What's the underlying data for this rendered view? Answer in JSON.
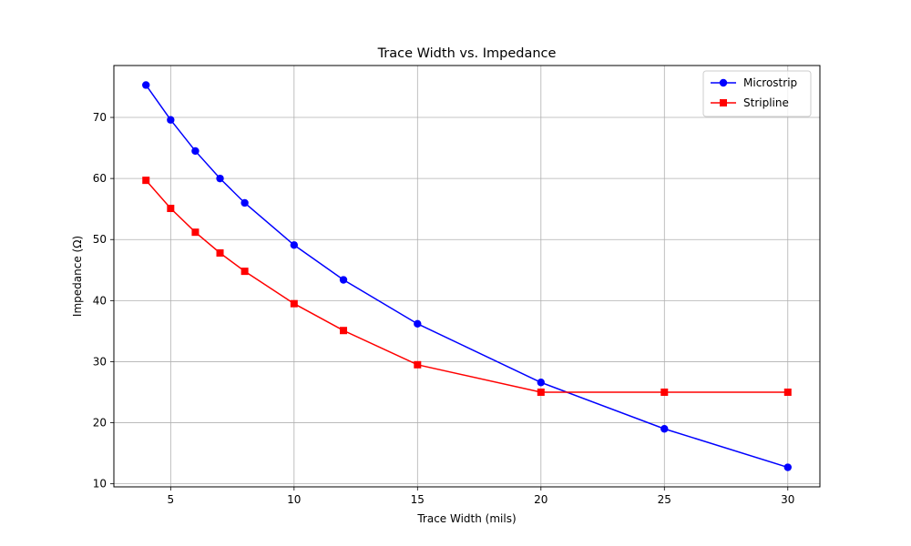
{
  "chart_data": {
    "type": "line",
    "title": "Trace Width vs. Impedance",
    "xlabel": "Trace Width (mils)",
    "ylabel": "Impedance (Ω)",
    "xlim": [
      2.7,
      31.3
    ],
    "ylim": [
      9.5,
      78.5
    ],
    "xticks": [
      5,
      10,
      15,
      20,
      25,
      30
    ],
    "yticks": [
      10,
      20,
      30,
      40,
      50,
      60,
      70
    ],
    "grid": true,
    "legend_position": "top-right",
    "x": [
      4,
      5,
      6,
      7,
      8,
      10,
      12,
      15,
      20,
      25,
      30
    ],
    "series": [
      {
        "name": "Microstrip",
        "color": "#0000ff",
        "marker": "circle",
        "values": [
          75.3,
          69.6,
          64.5,
          60.0,
          56.0,
          49.1,
          43.4,
          36.2,
          26.6,
          19.0,
          12.7
        ]
      },
      {
        "name": "Stripline",
        "color": "#ff0000",
        "marker": "square",
        "values": [
          59.7,
          55.1,
          51.2,
          47.8,
          44.8,
          39.5,
          35.1,
          29.5,
          25.0,
          25.0,
          25.0
        ]
      }
    ]
  }
}
